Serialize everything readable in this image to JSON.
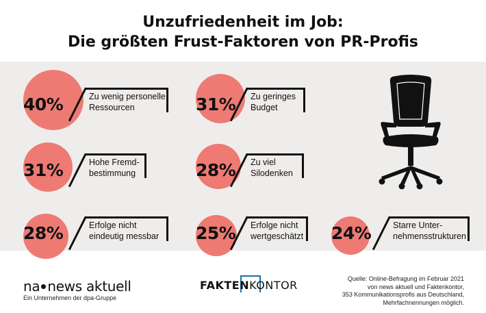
{
  "title": {
    "line1": "Unzufriedenheit im Job:",
    "line2": "Die größten Frust-Faktoren von PR-Profis"
  },
  "colors": {
    "accent": "#ee7a74",
    "panel": "#efedeb",
    "text": "#111111"
  },
  "chart_data": {
    "type": "bar",
    "title": "Unzufriedenheit im Job: Die größten Frust-Faktoren von PR-Profis",
    "unit": "%",
    "categories": [
      "Zu wenig personelle Ressourcen",
      "Zu geringes Budget",
      "Hohe Fremdbestimmung",
      "Zu viel Silodenken",
      "Erfolge nicht eindeutig messbar",
      "Erfolge nicht wertgeschätzt",
      "Starre Unternehmensstrukturen"
    ],
    "values": [
      40,
      31,
      31,
      28,
      28,
      25,
      24
    ],
    "items": [
      {
        "pct": "40%",
        "line1": "Zu wenig personelle",
        "line2": "Ressourcen",
        "value": 40
      },
      {
        "pct": "31%",
        "line1": "Zu geringes",
        "line2": "Budget",
        "value": 31
      },
      {
        "pct": "31%",
        "line1": "Hohe Fremd-",
        "line2": "bestimmung",
        "value": 31
      },
      {
        "pct": "28%",
        "line1": "Zu viel",
        "line2": "Silodenken",
        "value": 28
      },
      {
        "pct": "28%",
        "line1": "Erfolge nicht",
        "line2": "eindeutig messbar",
        "value": 28
      },
      {
        "pct": "25%",
        "line1": "Erfolge nicht",
        "line2": "wertgeschätzt",
        "value": 25
      },
      {
        "pct": "24%",
        "line1": "Starre Unter-",
        "line2": "nehmensstrukturen",
        "value": 24
      }
    ]
  },
  "icons": {
    "illustration": "office-chair-icon"
  },
  "footer": {
    "logo_left": "na",
    "logo_right": "news aktuell",
    "logo_sub": "Ein Unternehmen der dpa-Gruppe",
    "fk_fakten": "FAKTEN",
    "fk_kontor": "KONTOR",
    "source_lines": [
      "Quelle: Online-Befragung im Februar 2021",
      "von news aktuell und Faktenkontor,",
      "353 Kommunikationsprofis aus Deutschland,",
      "Mehrfachnennungen möglich."
    ]
  }
}
